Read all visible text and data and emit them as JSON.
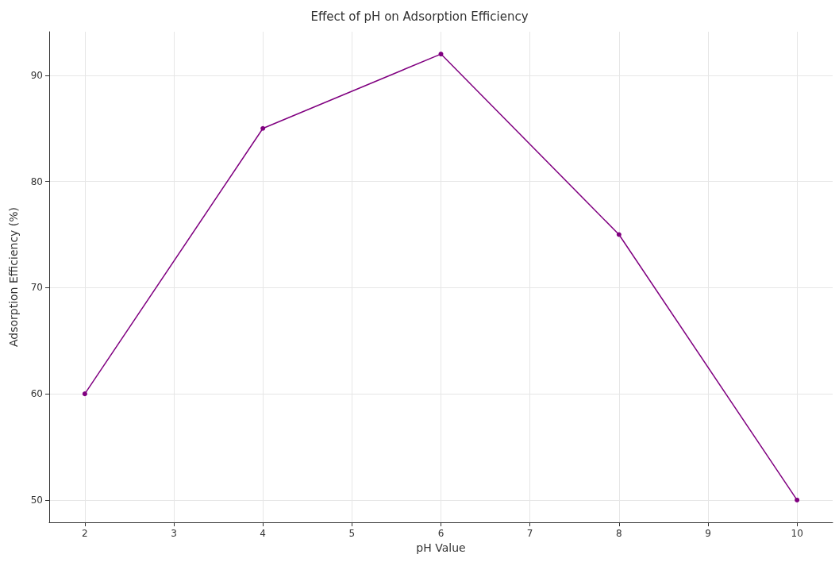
{
  "chart_data": {
    "type": "line",
    "title": "Effect of pH on Adsorption Efficiency",
    "xlabel": "pH Value",
    "ylabel": "Adsorption Efficiency (%)",
    "x": [
      2,
      4,
      6,
      8,
      10
    ],
    "series": [
      {
        "color": "#800080",
        "values": [
          60,
          85,
          92,
          75,
          50
        ]
      }
    ],
    "xlim": [
      1.6,
      10.4
    ],
    "xticks": [
      2,
      3,
      4,
      5,
      6,
      7,
      8,
      9,
      10
    ],
    "ylim": [
      47.9,
      94.1
    ],
    "yticks": [
      50,
      60,
      70,
      80,
      90
    ],
    "grid": true,
    "marker": "circle",
    "line_style": "solid"
  }
}
